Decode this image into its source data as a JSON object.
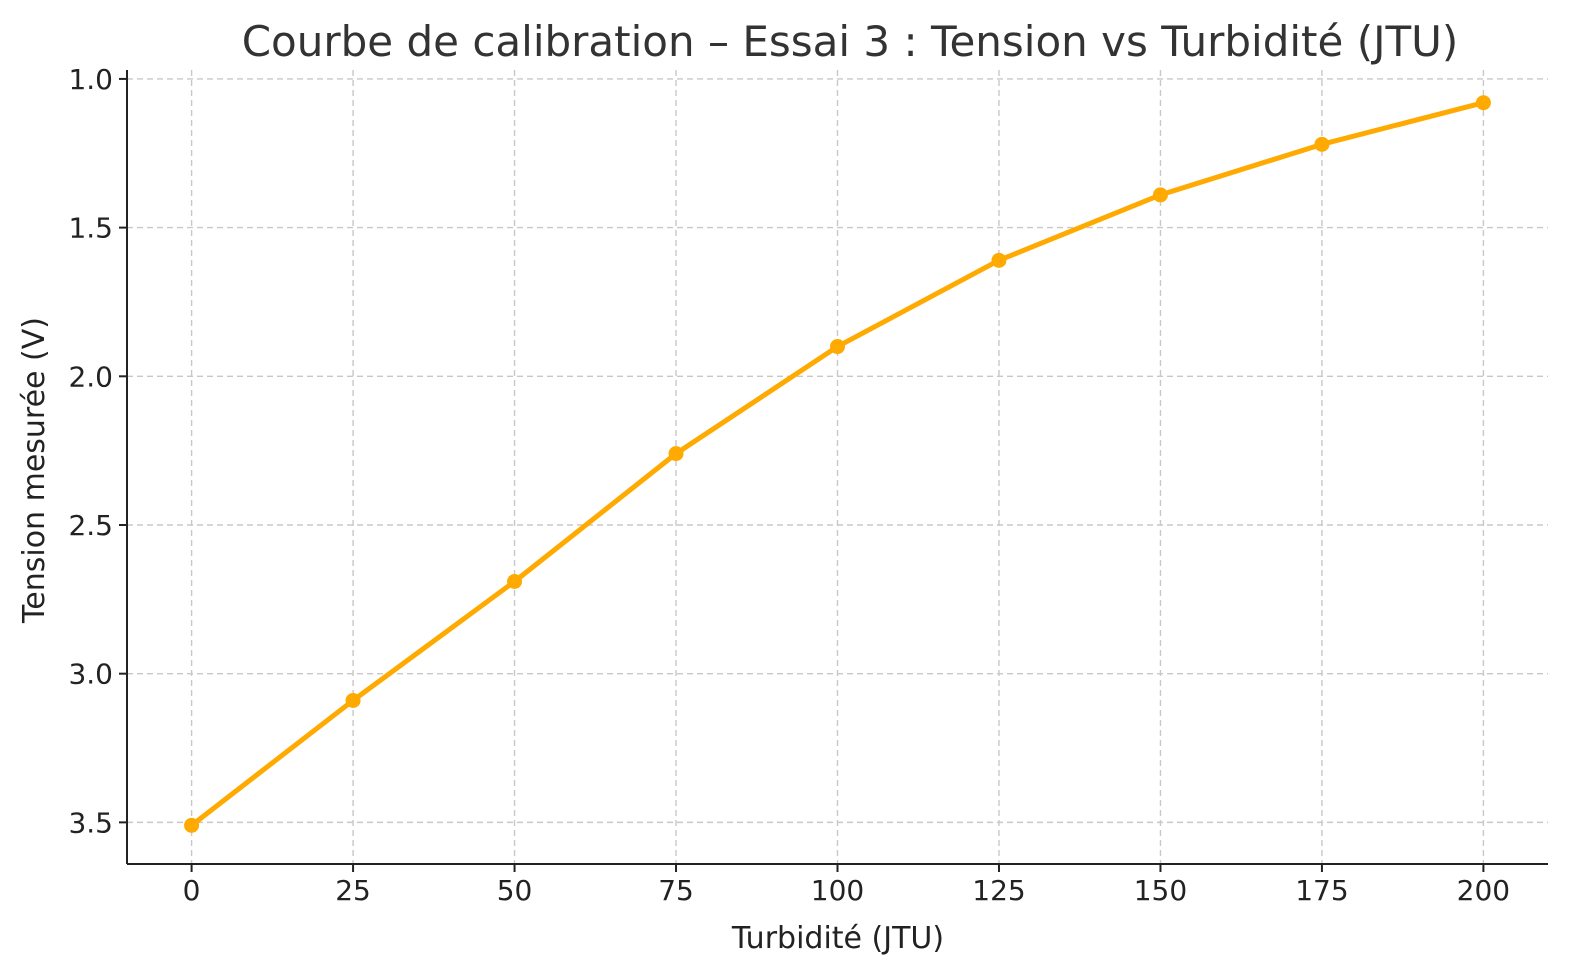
{
  "chart_data": {
    "type": "line",
    "title": "Courbe de calibration – Essai 3 : Tension vs Turbidité (JTU)",
    "xlabel": "Turbidité (JTU)",
    "ylabel": "Tension mesurée (V)",
    "x": [
      0,
      25,
      50,
      75,
      100,
      125,
      150,
      175,
      200
    ],
    "series": [
      {
        "values": [
          3.51,
          3.09,
          2.69,
          2.26,
          1.9,
          1.61,
          1.39,
          1.22,
          1.08
        ],
        "color": "#FFAA00",
        "marker": "circle"
      }
    ],
    "xlim": [
      -10,
      210
    ],
    "ylim": [
      3.64,
      0.97
    ],
    "y_inverted": true,
    "x_ticks": [
      0,
      25,
      50,
      75,
      100,
      125,
      150,
      175,
      200
    ],
    "y_ticks": [
      1.0,
      1.5,
      2.0,
      2.5,
      3.0,
      3.5
    ],
    "grid": true,
    "legend": "none"
  }
}
